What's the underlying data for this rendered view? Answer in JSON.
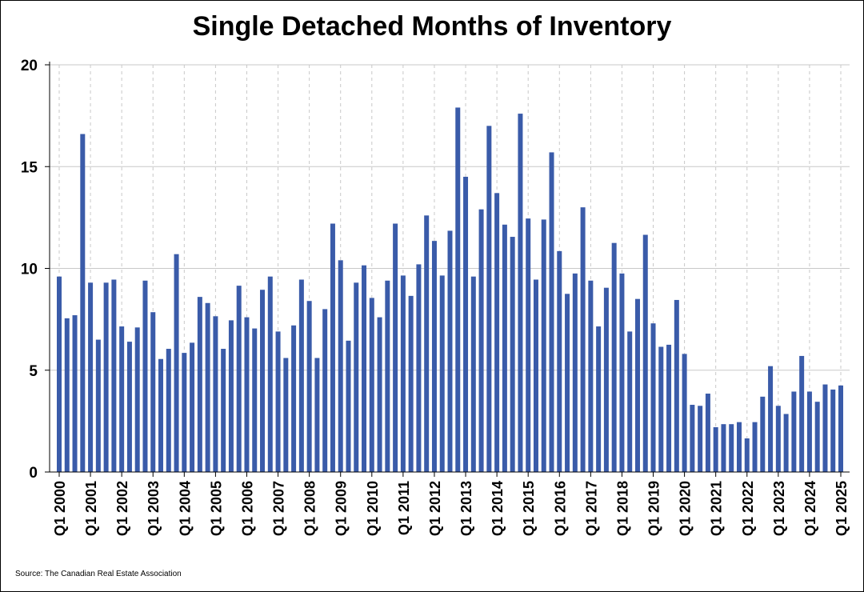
{
  "chart_data": {
    "type": "bar",
    "title": "Single Detached Months of Inventory",
    "xlabel": "",
    "ylabel": "",
    "ylim": [
      0,
      20
    ],
    "yticks": [
      0,
      5,
      10,
      15,
      20
    ],
    "grid": true,
    "bar_color": "#3A5BA9",
    "x_tick_labels": [
      "Q1 2000",
      "Q1 2001",
      "Q1 2002",
      "Q1 2003",
      "Q1 2004",
      "Q1 2005",
      "Q1 2006",
      "Q1 2007",
      "Q1 2008",
      "Q1 2009",
      "Q1 2010",
      "Q1 2011",
      "Q1 2012",
      "Q1 2013",
      "Q1 2014",
      "Q1 2015",
      "Q1 2016",
      "Q1 2017",
      "Q1 2018",
      "Q1 2019",
      "Q1 2020",
      "Q1 2021",
      "Q1 2022",
      "Q1 2023",
      "Q1 2024",
      "Q1 2025"
    ],
    "categories": [
      "Q1 2000",
      "Q2 2000",
      "Q3 2000",
      "Q4 2000",
      "Q1 2001",
      "Q2 2001",
      "Q3 2001",
      "Q4 2001",
      "Q1 2002",
      "Q2 2002",
      "Q3 2002",
      "Q4 2002",
      "Q1 2003",
      "Q2 2003",
      "Q3 2003",
      "Q4 2003",
      "Q1 2004",
      "Q2 2004",
      "Q3 2004",
      "Q4 2004",
      "Q1 2005",
      "Q2 2005",
      "Q3 2005",
      "Q4 2005",
      "Q1 2006",
      "Q2 2006",
      "Q3 2006",
      "Q4 2006",
      "Q1 2007",
      "Q2 2007",
      "Q3 2007",
      "Q4 2007",
      "Q1 2008",
      "Q2 2008",
      "Q3 2008",
      "Q4 2008",
      "Q1 2009",
      "Q2 2009",
      "Q3 2009",
      "Q4 2009",
      "Q1 2010",
      "Q2 2010",
      "Q3 2010",
      "Q4 2010",
      "Q1 2011",
      "Q2 2011",
      "Q3 2011",
      "Q4 2011",
      "Q1 2012",
      "Q2 2012",
      "Q3 2012",
      "Q4 2012",
      "Q1 2013",
      "Q2 2013",
      "Q3 2013",
      "Q4 2013",
      "Q1 2014",
      "Q2 2014",
      "Q3 2014",
      "Q4 2014",
      "Q1 2015",
      "Q2 2015",
      "Q3 2015",
      "Q4 2015",
      "Q1 2016",
      "Q2 2016",
      "Q3 2016",
      "Q4 2016",
      "Q1 2017",
      "Q2 2017",
      "Q3 2017",
      "Q4 2017",
      "Q1 2018",
      "Q2 2018",
      "Q3 2018",
      "Q4 2018",
      "Q1 2019",
      "Q2 2019",
      "Q3 2019",
      "Q4 2019",
      "Q1 2020",
      "Q2 2020",
      "Q3 2020",
      "Q4 2020",
      "Q1 2021",
      "Q2 2021",
      "Q3 2021",
      "Q4 2021",
      "Q1 2022",
      "Q2 2022",
      "Q3 2022",
      "Q4 2022",
      "Q1 2023",
      "Q2 2023",
      "Q3 2023",
      "Q4 2023",
      "Q1 2024",
      "Q2 2024",
      "Q3 2024",
      "Q4 2024",
      "Q1 2025"
    ],
    "values": [
      9.6,
      7.55,
      7.7,
      16.6,
      9.3,
      6.5,
      9.3,
      9.45,
      7.15,
      6.4,
      7.1,
      9.4,
      7.85,
      5.55,
      6.05,
      10.7,
      5.85,
      6.35,
      8.6,
      8.3,
      7.65,
      6.05,
      7.45,
      9.15,
      7.6,
      7.05,
      8.95,
      9.6,
      6.9,
      5.6,
      7.2,
      9.45,
      8.4,
      5.6,
      8.0,
      12.2,
      10.4,
      6.45,
      9.3,
      10.15,
      8.55,
      7.6,
      9.4,
      12.2,
      9.65,
      8.65,
      10.2,
      12.6,
      11.35,
      9.65,
      11.85,
      17.9,
      14.5,
      9.6,
      12.9,
      17.0,
      13.7,
      12.15,
      11.55,
      17.6,
      12.45,
      9.45,
      12.4,
      15.7,
      10.85,
      8.75,
      9.75,
      13.0,
      9.4,
      7.15,
      9.05,
      11.25,
      9.75,
      6.9,
      8.5,
      11.65,
      7.3,
      6.15,
      6.25,
      8.45,
      5.8,
      3.3,
      3.25,
      3.85,
      2.2,
      2.35,
      2.35,
      2.45,
      1.65,
      2.45,
      3.7,
      5.2,
      3.25,
      2.85,
      3.95,
      5.7,
      3.95,
      3.45,
      4.3,
      4.05,
      4.25
    ]
  },
  "source_note": "Source: The Canadian Real Estate Association"
}
